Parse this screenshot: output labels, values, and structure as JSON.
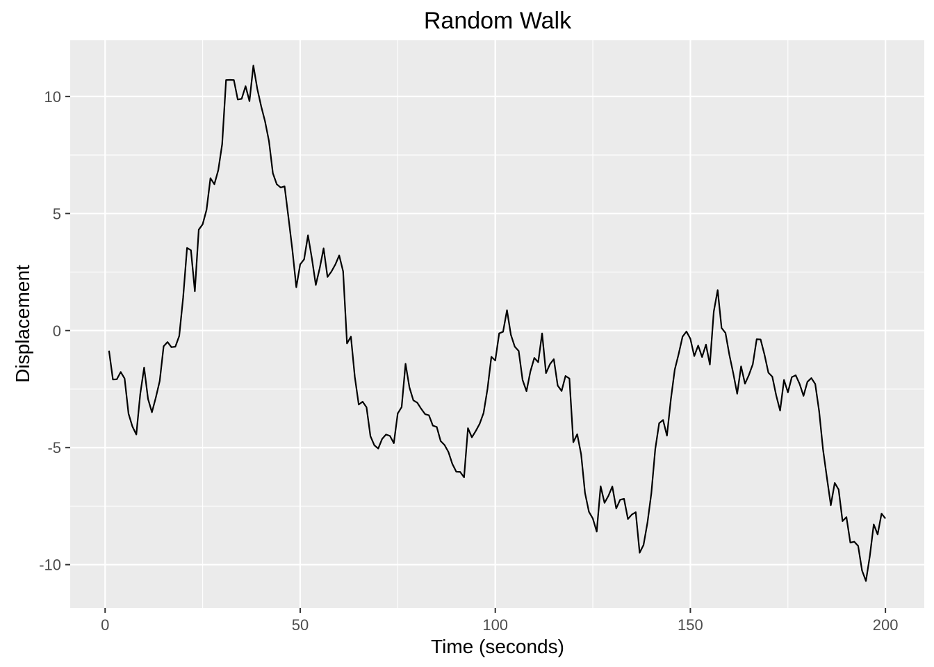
{
  "colors": {
    "panel_background": "#EBEBEB",
    "grid_line": "#FFFFFF",
    "series_line": "#000000",
    "tick_label": "#4D4D4D",
    "tick_mark": "#333333"
  },
  "chart_data": {
    "type": "line",
    "title": "Random Walk",
    "xlabel": "Time (seconds)",
    "ylabel": "Displacement",
    "xlim": [
      -8.95,
      209.95
    ],
    "ylim": [
      -11.85,
      12.4
    ],
    "x_ticks": [
      0,
      50,
      100,
      150,
      200
    ],
    "x_tick_labels": [
      "0",
      "50",
      "100",
      "150",
      "200"
    ],
    "y_ticks": [
      -10,
      -5,
      0,
      5,
      10
    ],
    "y_tick_labels": [
      "-10",
      "-5",
      "0",
      "5",
      "10"
    ],
    "grid": true,
    "legend": "none",
    "series": [
      {
        "x": [
          1,
          2,
          3,
          4,
          5,
          6,
          7,
          8,
          9,
          10,
          11,
          12,
          13,
          14,
          15,
          16,
          17,
          18,
          19,
          20,
          21,
          22,
          23,
          24,
          25,
          26,
          27,
          28,
          29,
          30,
          31,
          32,
          33,
          34,
          35,
          36,
          37,
          38,
          39,
          40,
          41,
          42,
          43,
          44,
          45,
          46,
          47,
          48,
          49,
          50,
          51,
          52,
          53,
          54,
          55,
          56,
          57,
          58,
          59,
          60,
          61,
          62,
          63,
          64,
          65,
          66,
          67,
          68,
          69,
          70,
          71,
          72,
          73,
          74,
          75,
          76,
          77,
          78,
          79,
          80,
          81,
          82,
          83,
          84,
          85,
          86,
          87,
          88,
          89,
          90,
          91,
          92,
          93,
          94,
          95,
          96,
          97,
          98,
          99,
          100,
          101,
          102,
          103,
          104,
          105,
          106,
          107,
          108,
          109,
          110,
          111,
          112,
          113,
          114,
          115,
          116,
          117,
          118,
          119,
          120,
          121,
          122,
          123,
          124,
          125,
          126,
          127,
          128,
          129,
          130,
          131,
          132,
          133,
          134,
          135,
          136,
          137,
          138,
          139,
          140,
          141,
          142,
          143,
          144,
          145,
          146,
          147,
          148,
          149,
          150,
          151,
          152,
          153,
          154,
          155,
          156,
          157,
          158,
          159,
          160,
          161,
          162,
          163,
          164,
          165,
          166,
          167,
          168,
          169,
          170,
          171,
          172,
          173,
          174,
          175,
          176,
          177,
          178,
          179,
          180,
          181,
          182,
          183,
          184,
          185,
          186,
          187,
          188,
          189,
          190,
          191,
          192,
          193,
          194,
          195,
          196,
          197,
          198,
          199,
          200
        ],
        "y": [
          -0.86,
          -2.09,
          -2.08,
          -1.77,
          -2.05,
          -3.55,
          -4.1,
          -4.44,
          -2.72,
          -1.58,
          -2.92,
          -3.49,
          -2.86,
          -2.15,
          -0.67,
          -0.49,
          -0.71,
          -0.69,
          -0.23,
          1.41,
          3.53,
          3.43,
          1.68,
          4.31,
          4.54,
          5.16,
          6.51,
          6.25,
          6.85,
          7.96,
          10.7,
          10.71,
          10.7,
          9.87,
          9.9,
          10.44,
          9.8,
          11.32,
          10.33,
          9.58,
          8.93,
          8.09,
          6.72,
          6.25,
          6.11,
          6.16,
          4.82,
          3.44,
          1.85,
          2.83,
          3.04,
          4.07,
          3.08,
          1.95,
          2.66,
          3.51,
          2.29,
          2.52,
          2.82,
          3.21,
          2.53,
          -0.55,
          -0.26,
          -1.98,
          -3.16,
          -3.04,
          -3.28,
          -4.51,
          -4.9,
          -5.04,
          -4.63,
          -4.44,
          -4.5,
          -4.81,
          -3.54,
          -3.27,
          -1.42,
          -2.43,
          -2.98,
          -3.08,
          -3.34,
          -3.57,
          -3.62,
          -4.06,
          -4.12,
          -4.72,
          -4.89,
          -5.19,
          -5.7,
          -6.03,
          -6.04,
          -6.27,
          -4.17,
          -4.56,
          -4.29,
          -3.98,
          -3.52,
          -2.5,
          -1.12,
          -1.28,
          -0.12,
          -0.05,
          0.87,
          -0.18,
          -0.69,
          -0.87,
          -2.11,
          -2.59,
          -1.75,
          -1.17,
          -1.35,
          -0.12,
          -1.82,
          -1.44,
          -1.22,
          -2.35,
          -2.58,
          -1.94,
          -2.05,
          -4.77,
          -4.43,
          -5.28,
          -6.94,
          -7.74,
          -8.03,
          -8.59,
          -6.65,
          -7.36,
          -7.06,
          -6.66,
          -7.6,
          -7.23,
          -7.19,
          -8.05,
          -7.86,
          -7.76,
          -9.49,
          -9.16,
          -8.21,
          -6.95,
          -5.07,
          -3.96,
          -3.82,
          -4.49,
          -2.94,
          -1.67,
          -1.0,
          -0.26,
          -0.04,
          -0.35,
          -1.09,
          -0.64,
          -1.13,
          -0.6,
          -1.45,
          0.81,
          1.73,
          0.11,
          -0.1,
          -1.04,
          -1.83,
          -2.7,
          -1.53,
          -2.27,
          -1.9,
          -1.44,
          -0.37,
          -0.38,
          -1.03,
          -1.8,
          -1.97,
          -2.77,
          -3.42,
          -2.11,
          -2.64,
          -1.99,
          -1.91,
          -2.28,
          -2.79,
          -2.19,
          -2.03,
          -2.28,
          -3.44,
          -5.08,
          -6.29,
          -7.46,
          -6.51,
          -6.79,
          -8.14,
          -7.97,
          -9.06,
          -9.02,
          -9.2,
          -10.25,
          -10.7,
          -9.63,
          -8.28,
          -8.71,
          -7.82,
          -8.03
        ]
      }
    ]
  }
}
